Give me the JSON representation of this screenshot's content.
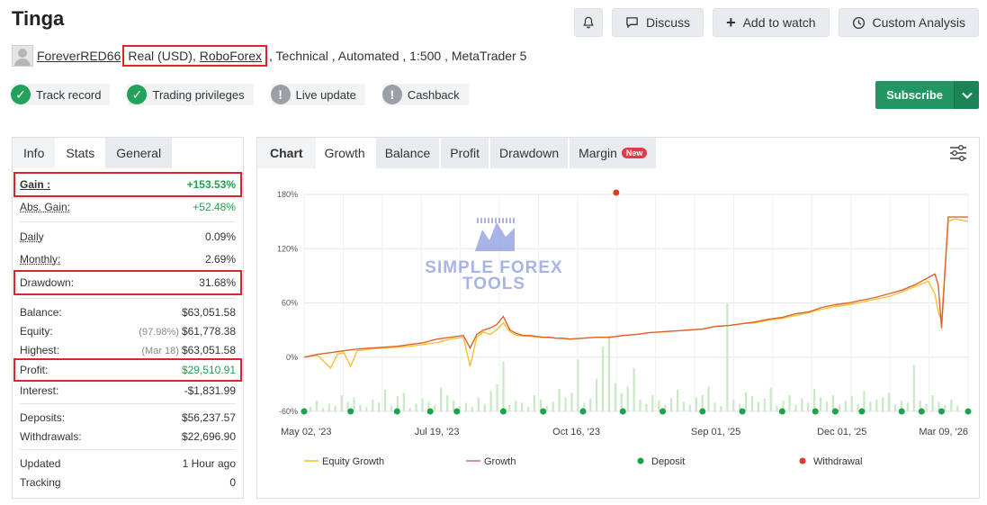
{
  "account": {
    "title": "Tinga",
    "username": "ForeverRED66",
    "account_type": "Real (USD),",
    "broker": "RoboForex",
    "details": ", Technical , Automated , 1:500 , MetaTrader 5"
  },
  "toolbar": {
    "discuss_label": "Discuss",
    "watch_label": "Add to watch",
    "custom_analysis_label": "Custom Analysis",
    "subscribe_label": "Subscribe"
  },
  "badges": [
    {
      "label": "Track record",
      "status": "verified",
      "icon": "check-icon"
    },
    {
      "label": "Trading privileges",
      "status": "verified",
      "icon": "check-icon"
    },
    {
      "label": "Live update",
      "status": "unverified",
      "icon": "exclamation-icon"
    },
    {
      "label": "Cashback",
      "status": "unverified",
      "icon": "exclamation-icon"
    }
  ],
  "stats_tabs": [
    "Info",
    "Stats",
    "General"
  ],
  "stats": {
    "gain": {
      "label": "Gain :",
      "value": "+153.53%"
    },
    "abs_gain": {
      "label": "Abs. Gain:",
      "value": "+52.48%"
    },
    "daily": {
      "label": "Daily",
      "value": "0.09%"
    },
    "monthly": {
      "label": "Monthly:",
      "value": "2.69%"
    },
    "drawdown": {
      "label": "Drawdown:",
      "value": "31.68%"
    },
    "balance": {
      "label": "Balance:",
      "value": "$63,051.58"
    },
    "equity": {
      "label": "Equity:",
      "prefix": "(97.98%)",
      "value": "$61,778.38"
    },
    "highest": {
      "label": "Highest:",
      "prefix": "(Mar 18)",
      "value": "$63,051.58"
    },
    "profit": {
      "label": "Profit:",
      "value": "$29,510.91"
    },
    "interest": {
      "label": "Interest:",
      "value": "-$1,831.99"
    },
    "deposits": {
      "label": "Deposits:",
      "value": "$56,237.57"
    },
    "withdrawals": {
      "label": "Withdrawals:",
      "value": "$22,696.90"
    },
    "updated": {
      "label": "Updated",
      "value": "1 Hour ago"
    },
    "tracking": {
      "label": "Tracking",
      "value": "0"
    }
  },
  "chart_tabs": {
    "chart": "Chart",
    "growth": "Growth",
    "balance": "Balance",
    "profit": "Profit",
    "drawdown": "Drawdown",
    "margin": "Margin",
    "margin_badge": "New"
  },
  "watermark": {
    "line1": "SIMPLE FOREX",
    "line2": "TOOLS"
  },
  "colors": {
    "growth": "#e0622a",
    "equity_growth": "#f5c132",
    "deposit": "#1aa34a",
    "withdrawal": "#e0392b",
    "volume_bars": "#c9e8c6",
    "accent_red_box": "#d9262b",
    "subscribe_green": "#219663"
  },
  "chart_data": {
    "type": "line",
    "yticks": [
      "180%",
      "120%",
      "60%",
      "0%",
      "-60%"
    ],
    "ylim": [
      -60,
      180
    ],
    "xticks": [
      "May 02, '23",
      "Jul 19, '23",
      "Oct 16, '23",
      "Sep 01, '25",
      "Dec 01, '25",
      "Mar 09, '26"
    ],
    "grid": true,
    "legend_position": "bottom",
    "legend": [
      "Equity Growth",
      "Growth",
      "Deposit",
      "Withdrawal"
    ],
    "series": [
      {
        "name": "Growth",
        "x": [
          0,
          2,
          4,
          6,
          8,
          10,
          12,
          14,
          16,
          18,
          20,
          22,
          24,
          25,
          26,
          27,
          28,
          29,
          30,
          31,
          32,
          33,
          34,
          35,
          36,
          37,
          38,
          39,
          40,
          42,
          44,
          46,
          48,
          50,
          52,
          54,
          56,
          58,
          60,
          62,
          64,
          66,
          68,
          70,
          72,
          74,
          76,
          78,
          80,
          82,
          84,
          86,
          88,
          90,
          92,
          94,
          95,
          95.5,
          96,
          97,
          98,
          100
        ],
        "y": [
          0,
          3,
          5,
          7,
          9,
          10,
          11,
          12,
          14,
          16,
          20,
          22,
          24,
          10,
          25,
          30,
          32,
          36,
          45,
          30,
          26,
          24,
          24,
          23,
          22,
          22,
          21,
          21,
          20,
          21,
          22,
          22,
          24,
          25,
          27,
          28,
          29,
          30,
          31,
          34,
          35,
          37,
          39,
          42,
          44,
          48,
          50,
          55,
          58,
          60,
          63,
          66,
          70,
          74,
          80,
          88,
          92,
          80,
          32,
          155,
          155,
          155
        ]
      },
      {
        "name": "Equity Growth",
        "x": [
          0,
          2,
          4,
          5,
          6,
          7,
          8,
          10,
          12,
          14,
          16,
          18,
          20,
          22,
          24,
          25,
          26,
          27,
          28,
          29,
          30,
          31,
          32,
          34,
          36,
          38,
          40,
          42,
          44,
          46,
          48,
          50,
          52,
          54,
          56,
          58,
          60,
          62,
          64,
          66,
          68,
          70,
          72,
          74,
          76,
          78,
          80,
          82,
          84,
          86,
          88,
          90,
          92,
          94,
          95,
          95.5,
          96,
          97,
          98,
          100
        ],
        "y": [
          0,
          2,
          -12,
          3,
          5,
          -10,
          7,
          9,
          10,
          11,
          12,
          14,
          16,
          20,
          22,
          -10,
          22,
          28,
          25,
          30,
          38,
          28,
          24,
          23,
          22,
          21,
          20,
          21,
          22,
          22,
          24,
          25,
          27,
          28,
          29,
          30,
          31,
          34,
          35,
          37,
          38,
          41,
          43,
          46,
          49,
          53,
          56,
          58,
          61,
          64,
          67,
          72,
          78,
          84,
          70,
          50,
          40,
          150,
          153,
          150
        ]
      }
    ],
    "deposit_x": [
      0,
      7,
      14,
      19,
      23,
      30,
      36,
      42,
      48,
      54,
      60,
      66,
      72,
      77,
      80,
      84,
      90,
      93,
      96,
      100
    ],
    "withdrawal_x": [
      47
    ]
  }
}
